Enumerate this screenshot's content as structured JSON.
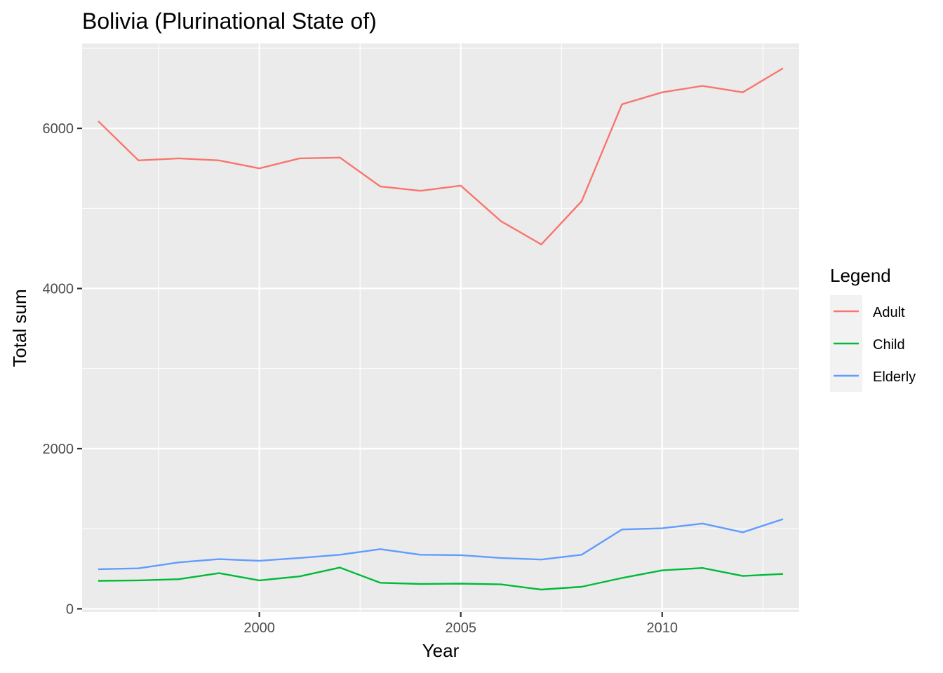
{
  "chart_data": {
    "type": "line",
    "title": "Bolivia (Plurinational State of)",
    "xlabel": "Year",
    "ylabel": "Total sum",
    "xlim": [
      1995.6,
      2013.4
    ],
    "ylim": [
      -40,
      7060
    ],
    "x_ticks": [
      2000,
      2005,
      2010
    ],
    "x_tick_labels": [
      "2000",
      "2005",
      "2010"
    ],
    "y_ticks": [
      0,
      2000,
      4000,
      6000
    ],
    "y_tick_labels": [
      "0",
      "2000",
      "4000",
      "6000"
    ],
    "grid": true,
    "legend": {
      "title": "Legend",
      "position": "right"
    },
    "x": [
      1996,
      1997,
      1998,
      1999,
      2000,
      2001,
      2002,
      2003,
      2004,
      2005,
      2006,
      2007,
      2008,
      2009,
      2010,
      2011,
      2012,
      2013
    ],
    "series": [
      {
        "name": "Adult",
        "color": "#F8766D",
        "values": [
          6090,
          5600,
          5625,
          5600,
          5500,
          5625,
          5635,
          5275,
          5220,
          5285,
          4840,
          4550,
          5090,
          6300,
          6450,
          6530,
          6450,
          6750
        ]
      },
      {
        "name": "Child",
        "color": "#00BA38",
        "values": [
          350,
          355,
          370,
          445,
          355,
          405,
          515,
          325,
          310,
          315,
          305,
          240,
          275,
          385,
          480,
          510,
          410,
          435
        ]
      },
      {
        "name": "Elderly",
        "color": "#619CFF",
        "values": [
          495,
          505,
          580,
          620,
          600,
          635,
          675,
          745,
          675,
          670,
          635,
          615,
          675,
          990,
          1005,
          1065,
          955,
          1120
        ]
      }
    ]
  }
}
